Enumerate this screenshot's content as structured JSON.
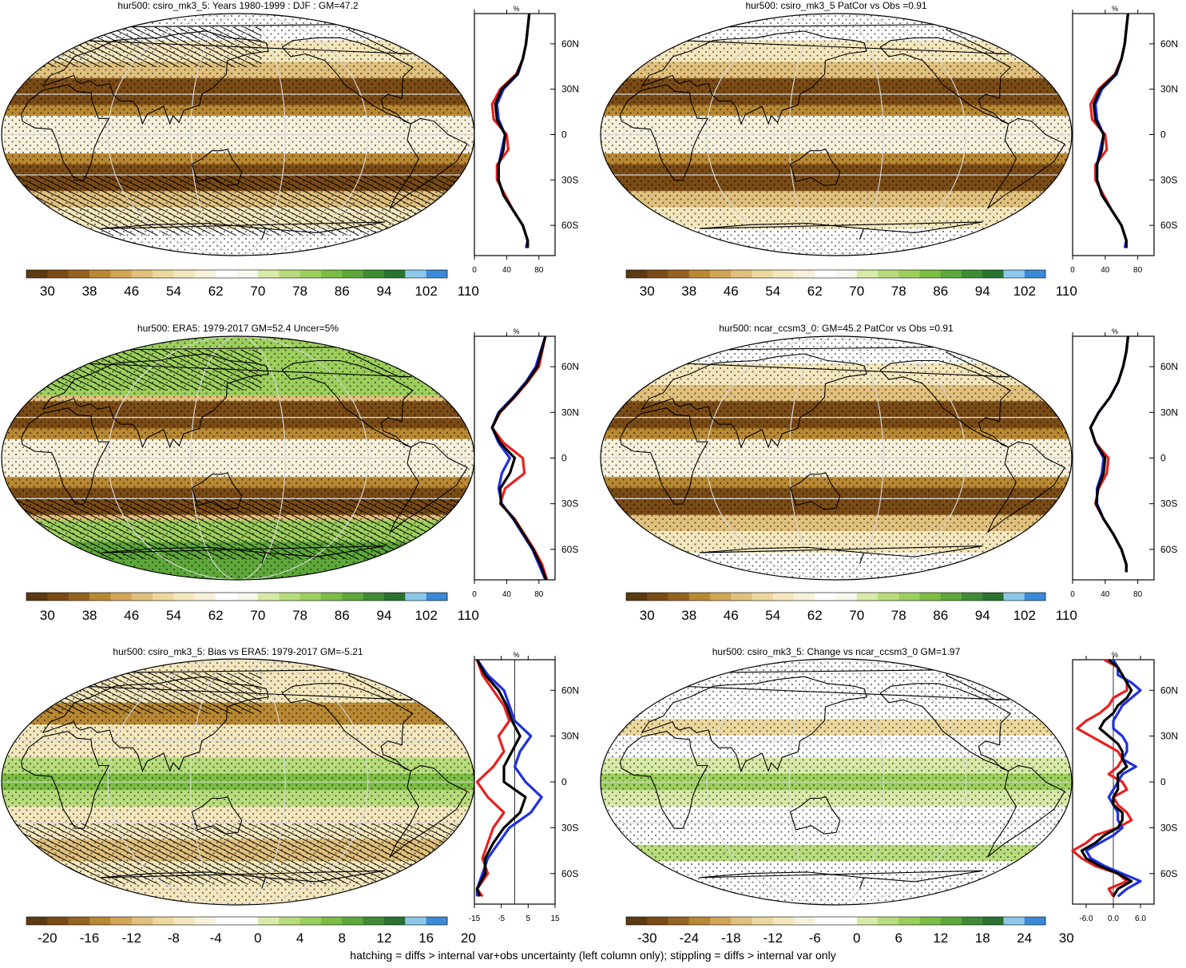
{
  "footer": "hatching = diffs > internal var+obs uncertainty (left column only); stippling = diffs > internal var only",
  "colors": {
    "mean_palette": [
      "#5c3a12",
      "#7a4b15",
      "#96621f",
      "#b88832",
      "#d1a656",
      "#e0c07c",
      "#ecd79d",
      "#f4e7bd",
      "#f7f1dc",
      "#ffffff",
      "#f6f8ee",
      "#d8eaa8",
      "#b8dc7c",
      "#9ccf5c",
      "#7cbd44",
      "#5ea83a",
      "#3f8c34",
      "#2a7230",
      "#8cc8ea",
      "#3a8ad8"
    ],
    "diff_palette": [
      "#5c3a12",
      "#7a4b15",
      "#96621f",
      "#b88832",
      "#d1a656",
      "#e0c07c",
      "#ecd79d",
      "#f4e7bd",
      "#f7f1dc",
      "#ffffff",
      "#ffffff",
      "#d8eaa8",
      "#b8dc7c",
      "#9ccf5c",
      "#7cbd44",
      "#5ea83a",
      "#3f8c34",
      "#2a7230",
      "#8cc8ea",
      "#3a8ad8"
    ],
    "model_line": "#1f30e0",
    "obs_line": "#e82020",
    "mmm_line": "#000000"
  },
  "panels": [
    {
      "title": "hur500: csiro_mk3_5: Years 1980-1999 : DJF : GM=47.2",
      "colorbar_labels": [
        "30",
        "38",
        "46",
        "54",
        "62",
        "70",
        "78",
        "86",
        "94",
        "102",
        "110"
      ],
      "palette": "mean",
      "chart_data": {
        "type": "line",
        "unit": "%",
        "lat_ticks": [
          "60N",
          "30N",
          "0",
          "30S",
          "60S"
        ],
        "x_ticks": [
          "0",
          "40",
          "80"
        ],
        "xlim": [
          0,
          100
        ],
        "lat": [
          80,
          70,
          60,
          50,
          40,
          30,
          20,
          10,
          0,
          -10,
          -20,
          -30,
          -40,
          -50,
          -60,
          -70,
          -75
        ],
        "series": [
          {
            "color": "red",
            "values": [
              68,
              66,
              64,
              60,
              52,
              32,
              22,
              24,
              40,
              42,
              28,
              28,
              38,
              48,
              60,
              66,
              66
            ]
          },
          {
            "color": "blue",
            "values": [
              68,
              66,
              64,
              60,
              54,
              36,
              28,
              30,
              38,
              34,
              30,
              30,
              36,
              48,
              60,
              66,
              64
            ]
          },
          {
            "color": "black",
            "values": [
              68,
              66,
              64,
              60,
              53,
              34,
              26,
              28,
              38,
              36,
              30,
              30,
              36,
              48,
              60,
              66,
              66
            ]
          }
        ]
      }
    },
    {
      "title": "hur500: csiro_mk3_5 PatCor vs Obs =0.91",
      "colorbar_labels": [
        "30",
        "38",
        "46",
        "54",
        "62",
        "70",
        "78",
        "86",
        "94",
        "102",
        "110"
      ],
      "palette": "mean",
      "chart_data": {
        "type": "line",
        "unit": "%",
        "lat_ticks": [
          "60N",
          "30N",
          "0",
          "30S",
          "60S"
        ],
        "x_ticks": [
          "0",
          "40",
          "80"
        ],
        "xlim": [
          0,
          100
        ],
        "lat": [
          80,
          70,
          60,
          50,
          40,
          30,
          20,
          10,
          0,
          -10,
          -20,
          -30,
          -40,
          -50,
          -60,
          -70,
          -75
        ],
        "series": [
          {
            "color": "red",
            "values": [
              68,
              66,
              64,
              60,
              52,
              32,
              22,
              24,
              40,
              42,
              28,
              28,
              38,
              48,
              60,
              66,
              66
            ]
          },
          {
            "color": "blue",
            "values": [
              68,
              66,
              64,
              60,
              54,
              36,
              28,
              30,
              38,
              34,
              30,
              30,
              36,
              48,
              60,
              66,
              64
            ]
          },
          {
            "color": "black",
            "values": [
              68,
              66,
              64,
              60,
              53,
              34,
              26,
              28,
              38,
              36,
              30,
              30,
              36,
              48,
              60,
              66,
              66
            ]
          }
        ]
      }
    },
    {
      "title": "hur500: ERA5: 1979-2017 GM=52.4 Uncer=5%",
      "colorbar_labels": [
        "30",
        "38",
        "46",
        "54",
        "62",
        "70",
        "78",
        "86",
        "94",
        "102",
        "110"
      ],
      "palette": "mean",
      "chart_data": {
        "type": "line",
        "unit": "%",
        "lat_ticks": [
          "60N",
          "30N",
          "0",
          "30S",
          "60S"
        ],
        "x_ticks": [
          "0",
          "40",
          "80"
        ],
        "xlim": [
          0,
          100
        ],
        "lat": [
          80,
          70,
          60,
          50,
          40,
          30,
          20,
          10,
          0,
          -10,
          -20,
          -30,
          -40,
          -50,
          -60,
          -70,
          -80
        ],
        "series": [
          {
            "color": "red",
            "values": [
              88,
              84,
              80,
              66,
              50,
              32,
              22,
              36,
              60,
              62,
              38,
              32,
              50,
              62,
              74,
              84,
              90
            ]
          },
          {
            "color": "blue",
            "values": [
              88,
              82,
              76,
              64,
              48,
              30,
              22,
              30,
              44,
              34,
              30,
              34,
              48,
              60,
              72,
              80,
              88
            ]
          },
          {
            "color": "black",
            "values": [
              88,
              83,
              78,
              65,
              49,
              31,
              22,
              32,
              50,
              44,
              32,
              33,
              49,
              61,
              73,
              82,
              89
            ]
          }
        ]
      }
    },
    {
      "title": "hur500: ncar_ccsm3_0: GM=45.2 PatCor vs Obs =0.91",
      "colorbar_labels": [
        "30",
        "38",
        "46",
        "54",
        "62",
        "70",
        "78",
        "86",
        "94",
        "102",
        "110"
      ],
      "palette": "mean",
      "chart_data": {
        "type": "line",
        "unit": "%",
        "lat_ticks": [
          "60N",
          "30N",
          "0",
          "30S",
          "60S"
        ],
        "x_ticks": [
          "0",
          "40",
          "80"
        ],
        "xlim": [
          0,
          100
        ],
        "lat": [
          80,
          70,
          60,
          50,
          40,
          30,
          20,
          10,
          0,
          -10,
          -20,
          -30,
          -40,
          -50,
          -60,
          -70,
          -75
        ],
        "series": [
          {
            "color": "red",
            "values": [
              68,
              66,
              62,
              56,
              46,
              32,
              22,
              28,
              44,
              42,
              32,
              28,
              38,
              50,
              60,
              66,
              66
            ]
          },
          {
            "color": "blue",
            "values": [
              68,
              66,
              62,
              56,
              46,
              32,
              22,
              28,
              38,
              36,
              30,
              30,
              38,
              50,
              60,
              66,
              66
            ]
          },
          {
            "color": "black",
            "values": [
              68,
              66,
              62,
              56,
              46,
              32,
              22,
              28,
              40,
              38,
              31,
              29,
              38,
              50,
              60,
              66,
              66
            ]
          }
        ]
      }
    },
    {
      "title": "hur500: csiro_mk3_5: Bias vs ERA5: 1979-2017 GM=-5.21",
      "colorbar_labels": [
        "-20",
        "-16",
        "-12",
        "-8",
        "-4",
        "0",
        "4",
        "8",
        "12",
        "16",
        "20"
      ],
      "palette": "diff",
      "chart_data": {
        "type": "line",
        "unit": "%",
        "lat_ticks": [
          "60N",
          "30N",
          "0",
          "30S",
          "60S"
        ],
        "x_ticks": [
          "-15",
          "-5",
          "5",
          "15"
        ],
        "xlim": [
          -15,
          15
        ],
        "lat": [
          80,
          70,
          60,
          50,
          40,
          30,
          20,
          10,
          0,
          -10,
          -20,
          -30,
          -40,
          -50,
          -60,
          -70,
          -75
        ],
        "series": [
          {
            "color": "red",
            "values": [
              -14,
              -12,
              -8,
              -4,
              -2,
              -6,
              -4,
              -8,
              -14,
              -10,
              -4,
              -8,
              -10,
              -12,
              -10,
              -14,
              -12
            ]
          },
          {
            "color": "blue",
            "values": [
              -14,
              -10,
              -4,
              -2,
              0,
              6,
              2,
              0,
              4,
              10,
              6,
              -2,
              -6,
              -10,
              -12,
              -14,
              -14
            ]
          },
          {
            "color": "black",
            "values": [
              -14,
              -11,
              -6,
              -3,
              -1,
              2,
              -1,
              -4,
              -4,
              4,
              2,
              -4,
              -8,
              -11,
              -11,
              -14,
              -13
            ]
          }
        ]
      }
    },
    {
      "title": "hur500: csiro_mk3_5: Change vs ncar_ccsm3_0 GM=1.97",
      "colorbar_labels": [
        "-30",
        "-24",
        "-18",
        "-12",
        "-6",
        "0",
        "6",
        "12",
        "18",
        "24",
        "30"
      ],
      "palette": "diff",
      "chart_data": {
        "type": "line",
        "unit": "%",
        "lat_ticks": [
          "60N",
          "30N",
          "0",
          "30S",
          "60S"
        ],
        "x_ticks": [
          "-6.0",
          "0.0",
          "6.0"
        ],
        "xlim": [
          -9,
          9
        ],
        "lat": [
          80,
          75,
          70,
          65,
          60,
          55,
          50,
          45,
          40,
          35,
          30,
          25,
          20,
          15,
          10,
          5,
          0,
          -5,
          -10,
          -15,
          -20,
          -25,
          -30,
          -35,
          -40,
          -45,
          -50,
          -55,
          -60,
          -65,
          -70,
          -75
        ],
        "series": [
          {
            "color": "red",
            "values": [
              -2,
              1,
              2,
              3,
              3,
              0,
              -1,
              -3,
              -6,
              -8,
              -5,
              -2,
              1,
              2,
              1,
              -1,
              2,
              3,
              0,
              1,
              3,
              4,
              1,
              -4,
              -6,
              -9,
              -7,
              -4,
              1,
              3,
              -1,
              0
            ]
          },
          {
            "color": "blue",
            "values": [
              0,
              1,
              1,
              4,
              6,
              4,
              2,
              1,
              0,
              0,
              2,
              3,
              3,
              2,
              5,
              2,
              1,
              0,
              -1,
              0,
              1,
              1,
              2,
              0,
              -3,
              -6,
              -5,
              -2,
              2,
              6,
              3,
              1
            ]
          },
          {
            "color": "black",
            "values": [
              -1,
              1,
              2,
              3,
              4,
              3,
              1,
              0,
              -2,
              -3,
              -1,
              1,
              2,
              2,
              3,
              1,
              1,
              1,
              0,
              0,
              2,
              2,
              1,
              -2,
              -4,
              -7,
              -6,
              -3,
              1,
              4,
              1,
              0
            ]
          }
        ]
      }
    }
  ]
}
